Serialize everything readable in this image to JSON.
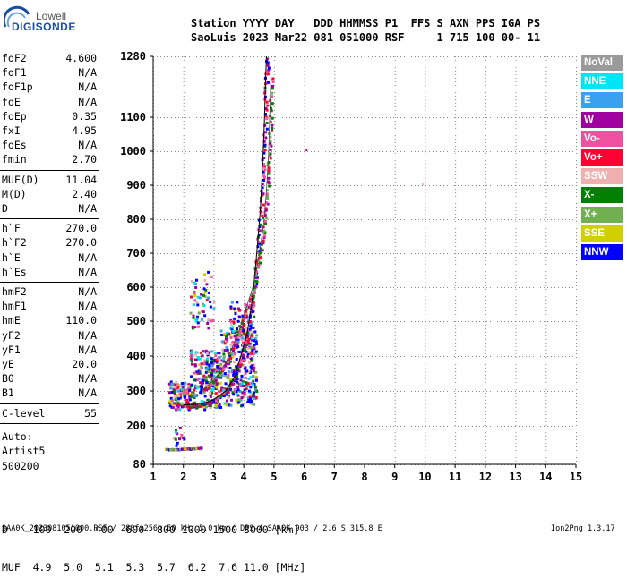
{
  "logo": {
    "top": "Lowell",
    "main": "DIGISONDE"
  },
  "header": {
    "line1": "Station YYYY DAY   DDD HHMMSS P1  FFS S AXN PPS IGA PS",
    "line2": "SaoLuis 2023 Mar22 081 051000 RSF     1 715 100 00- 11"
  },
  "params": {
    "group1": [
      {
        "name": "foF2",
        "value": "4.600"
      },
      {
        "name": "foF1",
        "value": "N/A"
      },
      {
        "name": "foF1p",
        "value": "N/A"
      },
      {
        "name": "foE",
        "value": "N/A"
      },
      {
        "name": "foEp",
        "value": "0.35"
      },
      {
        "name": "fxI",
        "value": "4.95"
      },
      {
        "name": "foEs",
        "value": "N/A"
      },
      {
        "name": "fmin",
        "value": "2.70"
      }
    ],
    "group2": [
      {
        "name": "MUF(D)",
        "value": "11.04"
      },
      {
        "name": "M(D)",
        "value": "2.40"
      },
      {
        "name": "D",
        "value": "N/A"
      }
    ],
    "group3": [
      {
        "name": "h`F",
        "value": "270.0"
      },
      {
        "name": "h`F2",
        "value": "270.0"
      },
      {
        "name": "h`E",
        "value": "N/A"
      },
      {
        "name": "h`Es",
        "value": "N/A"
      }
    ],
    "group4": [
      {
        "name": "hmF2",
        "value": "N/A"
      },
      {
        "name": "hmF1",
        "value": "N/A"
      },
      {
        "name": "hmE",
        "value": "110.0"
      },
      {
        "name": "yF2",
        "value": "N/A"
      },
      {
        "name": "yF1",
        "value": "N/A"
      },
      {
        "name": "yE",
        "value": "20.0"
      },
      {
        "name": "B0",
        "value": "N/A"
      },
      {
        "name": "B1",
        "value": "N/A"
      }
    ],
    "group5": [
      {
        "name": "C-level",
        "value": "55"
      }
    ],
    "auto": [
      "Auto:",
      "Artist5",
      "500200"
    ]
  },
  "legend": [
    {
      "label": "NoVal",
      "color": "#9a9a9a"
    },
    {
      "label": "NNE",
      "color": "#00e5f5"
    },
    {
      "label": "E",
      "color": "#3aa0f0"
    },
    {
      "label": "W",
      "color": "#a000a0"
    },
    {
      "label": "Vo-",
      "color": "#f050a0"
    },
    {
      "label": "Vo+",
      "color": "#ff0030"
    },
    {
      "label": "SSW",
      "color": "#f0b0b0"
    },
    {
      "label": "X-",
      "color": "#008000"
    },
    {
      "label": "X+",
      "color": "#70b050"
    },
    {
      "label": "SSE",
      "color": "#d0d000"
    },
    {
      "label": "NNW",
      "color": "#0000ff"
    }
  ],
  "muf_table": {
    "row1": "D    100  200  400  600  800 1000 1500 3000 [km]",
    "row2": "MUF  4.9  5.0  5.1  5.3  5.7  6.2  7.6 11.0 [MHz]"
  },
  "footer": "SAA0K_2023081051000.RSF / 280fx256h 50 kHz 5.0 km / DPS-4 SAA0K 903 / 2.6 S 315.8 E",
  "version": "Ion2Png 1.3.17",
  "chart_data": {
    "type": "scatter",
    "x_ticks": [
      1,
      2,
      3,
      4,
      5,
      6,
      7,
      8,
      9,
      10,
      11,
      12,
      13,
      14,
      15
    ],
    "y_ticks": [
      80,
      200,
      300,
      400,
      500,
      600,
      700,
      800,
      900,
      1000,
      1100,
      1280
    ],
    "xlim": [
      1,
      15
    ],
    "ylim": [
      80,
      1280
    ],
    "grid": true,
    "trace_o": [
      [
        2.0,
        260
      ],
      [
        2.6,
        262
      ],
      [
        3.0,
        275
      ],
      [
        3.4,
        300
      ],
      [
        3.7,
        340
      ],
      [
        3.9,
        400
      ],
      [
        4.1,
        460
      ],
      [
        4.25,
        540
      ],
      [
        4.35,
        620
      ],
      [
        4.45,
        720
      ],
      [
        4.55,
        830
      ],
      [
        4.62,
        950
      ],
      [
        4.68,
        1080
      ],
      [
        4.72,
        1200
      ],
      [
        4.75,
        1280
      ]
    ],
    "trace_x": [
      [
        2.6,
        300
      ],
      [
        3.0,
        330
      ],
      [
        3.4,
        380
      ],
      [
        3.8,
        460
      ],
      [
        4.05,
        530
      ],
      [
        4.3,
        600
      ],
      [
        4.5,
        690
      ],
      [
        4.65,
        780
      ],
      [
        4.75,
        880
      ],
      [
        4.82,
        990
      ],
      [
        4.86,
        1100
      ],
      [
        4.9,
        1230
      ]
    ],
    "trace_low": [
      [
        1.4,
        130
      ],
      [
        1.8,
        130
      ],
      [
        2.2,
        132
      ],
      [
        2.6,
        134
      ]
    ],
    "clusters": [
      {
        "x_range": [
          1.5,
          2.2
        ],
        "y_range": [
          250,
          330
        ],
        "n": 120
      },
      {
        "x_range": [
          2.2,
          3.2
        ],
        "y_range": [
          250,
          420
        ],
        "n": 260
      },
      {
        "x_range": [
          3.2,
          4.4
        ],
        "y_range": [
          260,
          480
        ],
        "n": 300
      },
      {
        "x_range": [
          2.2,
          3.0
        ],
        "y_range": [
          480,
          650
        ],
        "n": 60
      },
      {
        "x_range": [
          3.5,
          4.3
        ],
        "y_range": [
          420,
          560
        ],
        "n": 90
      },
      {
        "x_range": [
          1.6,
          2.0
        ],
        "y_range": [
          140,
          200
        ],
        "n": 12
      }
    ]
  }
}
